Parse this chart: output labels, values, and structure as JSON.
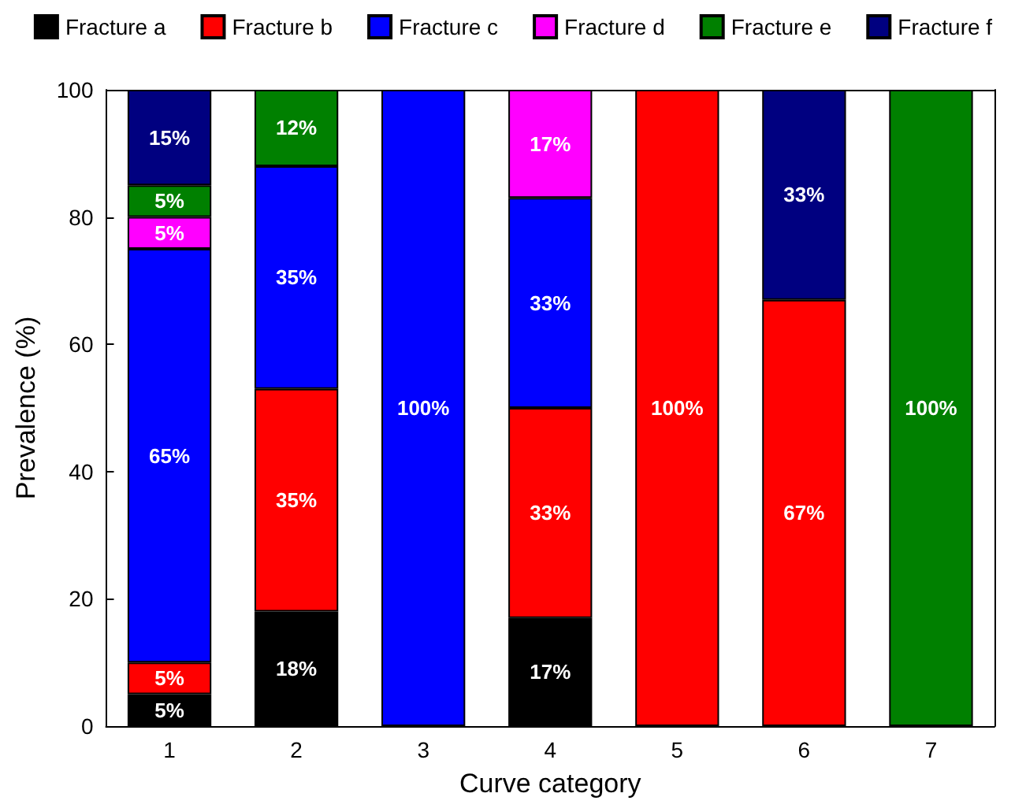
{
  "chart_data": {
    "type": "bar",
    "stacked": true,
    "xlabel": "Curve category",
    "ylabel": "Prevalence (%)",
    "categories": [
      "1",
      "2",
      "3",
      "4",
      "5",
      "6",
      "7"
    ],
    "series": [
      {
        "name": "Fracture a",
        "color": "#000000",
        "values": [
          5,
          18,
          null,
          17,
          null,
          null,
          null
        ],
        "value_labels": [
          "5%",
          "18%",
          null,
          "17%",
          null,
          null,
          null
        ]
      },
      {
        "name": "Fracture b",
        "color": "#ff0000",
        "values": [
          5,
          35,
          null,
          33,
          100,
          67,
          null
        ],
        "value_labels": [
          "5%",
          "35%",
          null,
          "33%",
          "100%",
          "67%",
          null
        ]
      },
      {
        "name": "Fracture c",
        "color": "#0000ff",
        "values": [
          65,
          35,
          100,
          33,
          null,
          null,
          null
        ],
        "value_labels": [
          "65%",
          "35%",
          "100%",
          "33%",
          null,
          null,
          null
        ]
      },
      {
        "name": "Fracture d",
        "color": "#ff00ff",
        "values": [
          5,
          null,
          null,
          17,
          null,
          null,
          null
        ],
        "value_labels": [
          "5%",
          null,
          null,
          "17%",
          null,
          null,
          null
        ]
      },
      {
        "name": "Fracture e",
        "color": "#008000",
        "values": [
          5,
          12,
          null,
          null,
          null,
          null,
          100
        ],
        "value_labels": [
          "5%",
          "12%",
          null,
          null,
          null,
          null,
          "100%"
        ]
      },
      {
        "name": "Fracture f",
        "color": "#000080",
        "values": [
          15,
          null,
          null,
          null,
          null,
          33,
          null
        ],
        "value_labels": [
          "15%",
          null,
          null,
          null,
          null,
          "33%",
          null
        ]
      }
    ],
    "ylim": [
      0,
      100
    ],
    "yticks": [
      0,
      20,
      40,
      60,
      80,
      100
    ],
    "grid": false,
    "legend": "top"
  }
}
